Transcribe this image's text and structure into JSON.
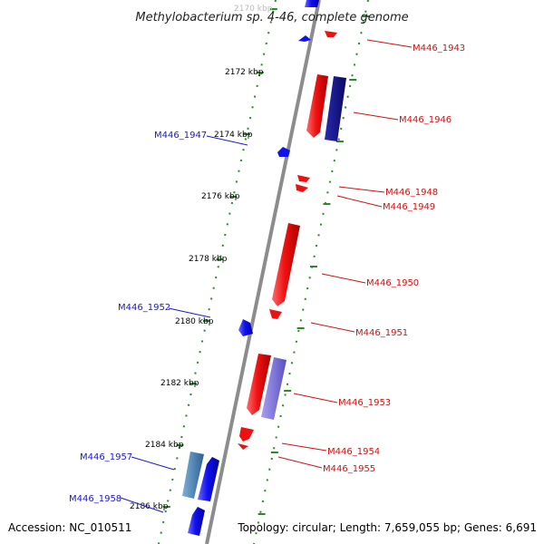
{
  "title": "Methylobacterium sp. 4-46, complete genome",
  "footer": {
    "accession": "Accession: NC_010511",
    "topology": "Topology: circular; Length: 7,659,055 bp; Genes: 6,691"
  },
  "colors": {
    "backbone": "#8c8c8c",
    "tick_dots": "#2a8a2a",
    "forward_label": "#1a1acc",
    "reverse_label": "#d11111",
    "forward_gene": "#1111ee",
    "reverse_gene": "#ee1111",
    "dark_blue_gene": "#101080",
    "lavender_gene": "#7a70d8",
    "steel_blue_gene": "#4682b4"
  },
  "ticks": [
    {
      "label": "2170 kbp",
      "faded": true
    },
    {
      "label": "2172 kbp",
      "faded": false
    },
    {
      "label": "2174 kbp",
      "faded": false
    },
    {
      "label": "2176 kbp",
      "faded": false
    },
    {
      "label": "2178 kbp",
      "faded": false
    },
    {
      "label": "2180 kbp",
      "faded": false
    },
    {
      "label": "2182 kbp",
      "faded": false
    },
    {
      "label": "2184 kbp",
      "faded": false
    },
    {
      "label": "2186 kbp",
      "faded": false
    }
  ],
  "gene_labels": [
    {
      "id": "M446_1943",
      "strand": "reverse"
    },
    {
      "id": "M446_1946",
      "strand": "reverse"
    },
    {
      "id": "M446_1947",
      "strand": "forward"
    },
    {
      "id": "M446_1948",
      "strand": "reverse"
    },
    {
      "id": "M446_1949",
      "strand": "reverse"
    },
    {
      "id": "M446_1950",
      "strand": "reverse"
    },
    {
      "id": "M446_1952",
      "strand": "forward"
    },
    {
      "id": "M446_1951",
      "strand": "reverse"
    },
    {
      "id": "M446_1953",
      "strand": "reverse"
    },
    {
      "id": "M446_1954",
      "strand": "reverse"
    },
    {
      "id": "M446_1955",
      "strand": "reverse"
    },
    {
      "id": "M446_1957",
      "strand": "forward"
    },
    {
      "id": "M446_1958",
      "strand": "forward"
    }
  ]
}
